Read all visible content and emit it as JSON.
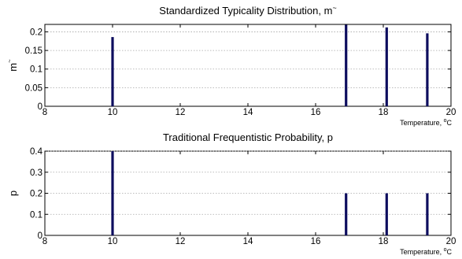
{
  "chart_data": [
    {
      "type": "bar",
      "title": "Standardized Typicality Distribution, m",
      "title_suffix": "~",
      "xlabel": "Temperature, ",
      "xlabel_unit_sup": "o",
      "xlabel_unit": "C",
      "ylabel": "m",
      "ylabel_suffix": "~",
      "xlim": [
        8,
        20
      ],
      "ylim": [
        0,
        0.22
      ],
      "x_ticks": [
        "8",
        "10",
        "12",
        "14",
        "16",
        "18",
        "20"
      ],
      "y_ticks": [
        "0",
        "0.05",
        "0.1",
        "0.15",
        "0.2"
      ],
      "grid": true,
      "bar_color": "#0d0d5e",
      "x": [
        10,
        16.9,
        18.1,
        19.3
      ],
      "values": [
        0.186,
        0.219,
        0.212,
        0.196
      ]
    },
    {
      "type": "bar",
      "title": "Traditional Frequentistic Probability, p",
      "xlabel": "Temperature, ",
      "xlabel_unit_sup": "o",
      "xlabel_unit": "C",
      "ylabel": "p",
      "xlim": [
        8,
        20
      ],
      "ylim": [
        0,
        0.4
      ],
      "x_ticks": [
        "8",
        "10",
        "12",
        "14",
        "16",
        "18",
        "20"
      ],
      "y_ticks": [
        "0",
        "0.1",
        "0.2",
        "0.3",
        "0.4"
      ],
      "grid": true,
      "bar_color": "#0d0d5e",
      "x": [
        10,
        16.9,
        18.1,
        19.3
      ],
      "values": [
        0.4,
        0.2,
        0.2,
        0.2
      ]
    }
  ]
}
